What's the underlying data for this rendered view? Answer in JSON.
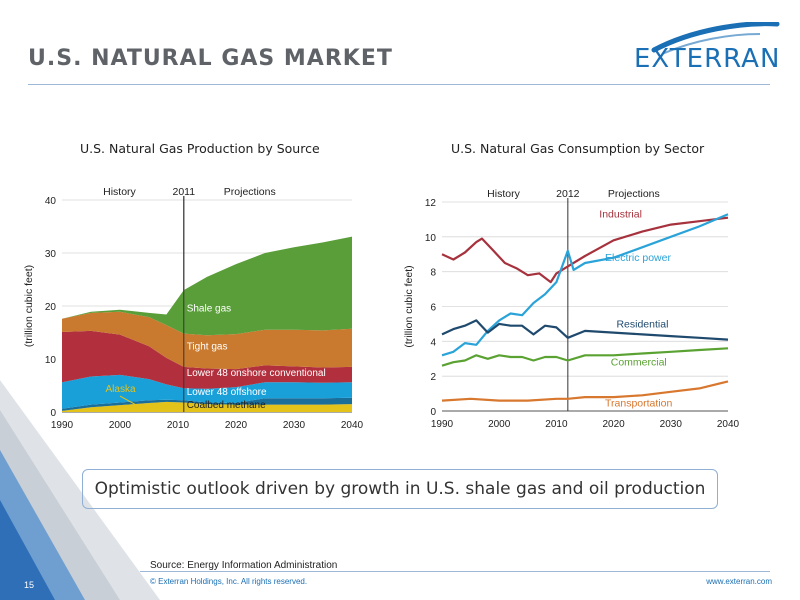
{
  "slide": {
    "title": "U.S. NATURAL GAS MARKET",
    "logo_text": "EXTERRAN",
    "callout": "Optimistic outlook driven by growth in U.S. shale gas and oil production",
    "source": "Source: Energy Information Administration",
    "copyright": "© Exterran Holdings, Inc. All rights reserved.",
    "url": "www.exterran.com",
    "page_number": "15"
  },
  "colors": {
    "title_gray": "#5f6368",
    "brand_blue": "#1a6fb5",
    "shale": "#5a9e3a",
    "tight": "#c97a2e",
    "lower48_conv": "#b2303d",
    "lower48_off": "#1aa0d9",
    "alaska": "#1a6e9a",
    "coalbed": "#e3c21a",
    "industrial": "#a6323d",
    "electric": "#2aa3d8",
    "residential": "#1f4a6e",
    "commercial": "#5aa232",
    "transportation": "#d8772e"
  },
  "chart_data": [
    {
      "type": "area",
      "title": "U.S. Natural Gas Production by Source",
      "ylabel": "(trillion cubic feet)",
      "xlabel": "",
      "xlim": [
        1990,
        2040
      ],
      "ylim": [
        0,
        40
      ],
      "xticks": [
        "1990",
        "2000",
        "2010",
        "2020",
        "2030",
        "2040"
      ],
      "yticks": [
        "0",
        "10",
        "20",
        "30",
        "40"
      ],
      "divider_year": 2011,
      "annotations": [
        "History",
        "2011",
        "Projections"
      ],
      "x": [
        1990,
        1995,
        2000,
        2005,
        2008,
        2011,
        2015,
        2020,
        2025,
        2030,
        2035,
        2040
      ],
      "series": [
        {
          "name": "Coalbed methane",
          "color": "#e3c21a",
          "values": [
            0.2,
            0.9,
            1.3,
            1.7,
            1.9,
            1.8,
            1.5,
            1.4,
            1.4,
            1.4,
            1.4,
            1.5
          ]
        },
        {
          "name": "Alaska",
          "color": "#1a6e9a",
          "values": [
            0.4,
            0.5,
            0.5,
            0.5,
            0.4,
            0.4,
            0.3,
            0.3,
            1.2,
            1.2,
            1.2,
            1.2
          ]
        },
        {
          "name": "Lower 48 offshore",
          "color": "#1aa0d9",
          "values": [
            5.0,
            5.3,
            5.2,
            4.0,
            2.9,
            2.3,
            2.6,
            3.0,
            3.0,
            3.0,
            2.9,
            2.9
          ]
        },
        {
          "name": "Lower 48 onshore conventional",
          "color": "#b2303d",
          "values": [
            9.5,
            8.6,
            7.6,
            6.2,
            5.0,
            4.0,
            3.8,
            3.4,
            3.2,
            3.0,
            2.9,
            2.9
          ]
        },
        {
          "name": "Tight gas",
          "color": "#c97a2e",
          "values": [
            2.5,
            3.4,
            4.3,
            5.5,
            6.2,
            6.3,
            6.3,
            6.6,
            6.7,
            6.9,
            7.0,
            7.2
          ]
        },
        {
          "name": "Shale gas",
          "color": "#5a9e3a",
          "values": [
            0.0,
            0.2,
            0.4,
            0.8,
            2.0,
            8.2,
            11.0,
            13.2,
            14.5,
            15.6,
            16.6,
            17.4
          ]
        }
      ],
      "labels": [
        "Shale gas",
        "Tight gas",
        "Lower 48 onshore conventional",
        "Lower 48 offshore",
        "Alaska",
        "Coalbed methane"
      ]
    },
    {
      "type": "line",
      "title": "U.S. Natural Gas Consumption by Sector",
      "ylabel": "(trillion cubic feet)",
      "xlabel": "",
      "xlim": [
        1990,
        2040
      ],
      "ylim": [
        0,
        12
      ],
      "xticks": [
        "1990",
        "2000",
        "2010",
        "2020",
        "2030",
        "2040"
      ],
      "yticks": [
        "0",
        "2",
        "4",
        "6",
        "8",
        "10",
        "12"
      ],
      "divider_year": 2012,
      "annotations": [
        "History",
        "2012",
        "Projections"
      ],
      "series": [
        {
          "name": "Industrial",
          "color": "#a6323d",
          "x": [
            1990,
            1992,
            1994,
            1996,
            1997,
            1999,
            2001,
            2003,
            2005,
            2007,
            2009,
            2010,
            2012,
            2015,
            2020,
            2025,
            2030,
            2035,
            2040
          ],
          "values": [
            9.0,
            8.7,
            9.1,
            9.7,
            9.9,
            9.2,
            8.5,
            8.2,
            7.8,
            7.9,
            7.4,
            7.9,
            8.3,
            8.9,
            9.8,
            10.3,
            10.7,
            10.9,
            11.1
          ]
        },
        {
          "name": "Electric power",
          "color": "#2aa3d8",
          "x": [
            1990,
            1992,
            1994,
            1996,
            1998,
            2000,
            2002,
            2004,
            2006,
            2008,
            2010,
            2012,
            2013,
            2015,
            2020,
            2025,
            2030,
            2035,
            2040
          ],
          "values": [
            3.2,
            3.4,
            3.9,
            3.8,
            4.6,
            5.2,
            5.6,
            5.5,
            6.2,
            6.7,
            7.4,
            9.2,
            8.1,
            8.5,
            8.8,
            9.4,
            10.0,
            10.6,
            11.3
          ]
        },
        {
          "name": "Residential",
          "color": "#1f4a6e",
          "x": [
            1990,
            1992,
            1994,
            1996,
            1998,
            2000,
            2002,
            2004,
            2006,
            2008,
            2010,
            2012,
            2015,
            2020,
            2025,
            2030,
            2035,
            2040
          ],
          "values": [
            4.4,
            4.7,
            4.9,
            5.2,
            4.5,
            5.0,
            4.9,
            4.9,
            4.4,
            4.9,
            4.8,
            4.2,
            4.6,
            4.5,
            4.4,
            4.3,
            4.2,
            4.1
          ]
        },
        {
          "name": "Commercial",
          "color": "#5aa232",
          "x": [
            1990,
            1992,
            1994,
            1996,
            1998,
            2000,
            2002,
            2004,
            2006,
            2008,
            2010,
            2012,
            2015,
            2020,
            2025,
            2030,
            2035,
            2040
          ],
          "values": [
            2.6,
            2.8,
            2.9,
            3.2,
            3.0,
            3.2,
            3.1,
            3.1,
            2.9,
            3.1,
            3.1,
            2.9,
            3.2,
            3.2,
            3.3,
            3.4,
            3.5,
            3.6
          ]
        },
        {
          "name": "Transportation",
          "color": "#d8772e",
          "x": [
            1990,
            1995,
            2000,
            2005,
            2010,
            2012,
            2015,
            2020,
            2025,
            2030,
            2035,
            2040
          ],
          "values": [
            0.6,
            0.7,
            0.6,
            0.6,
            0.7,
            0.7,
            0.8,
            0.8,
            0.9,
            1.1,
            1.3,
            1.7
          ]
        }
      ]
    }
  ]
}
